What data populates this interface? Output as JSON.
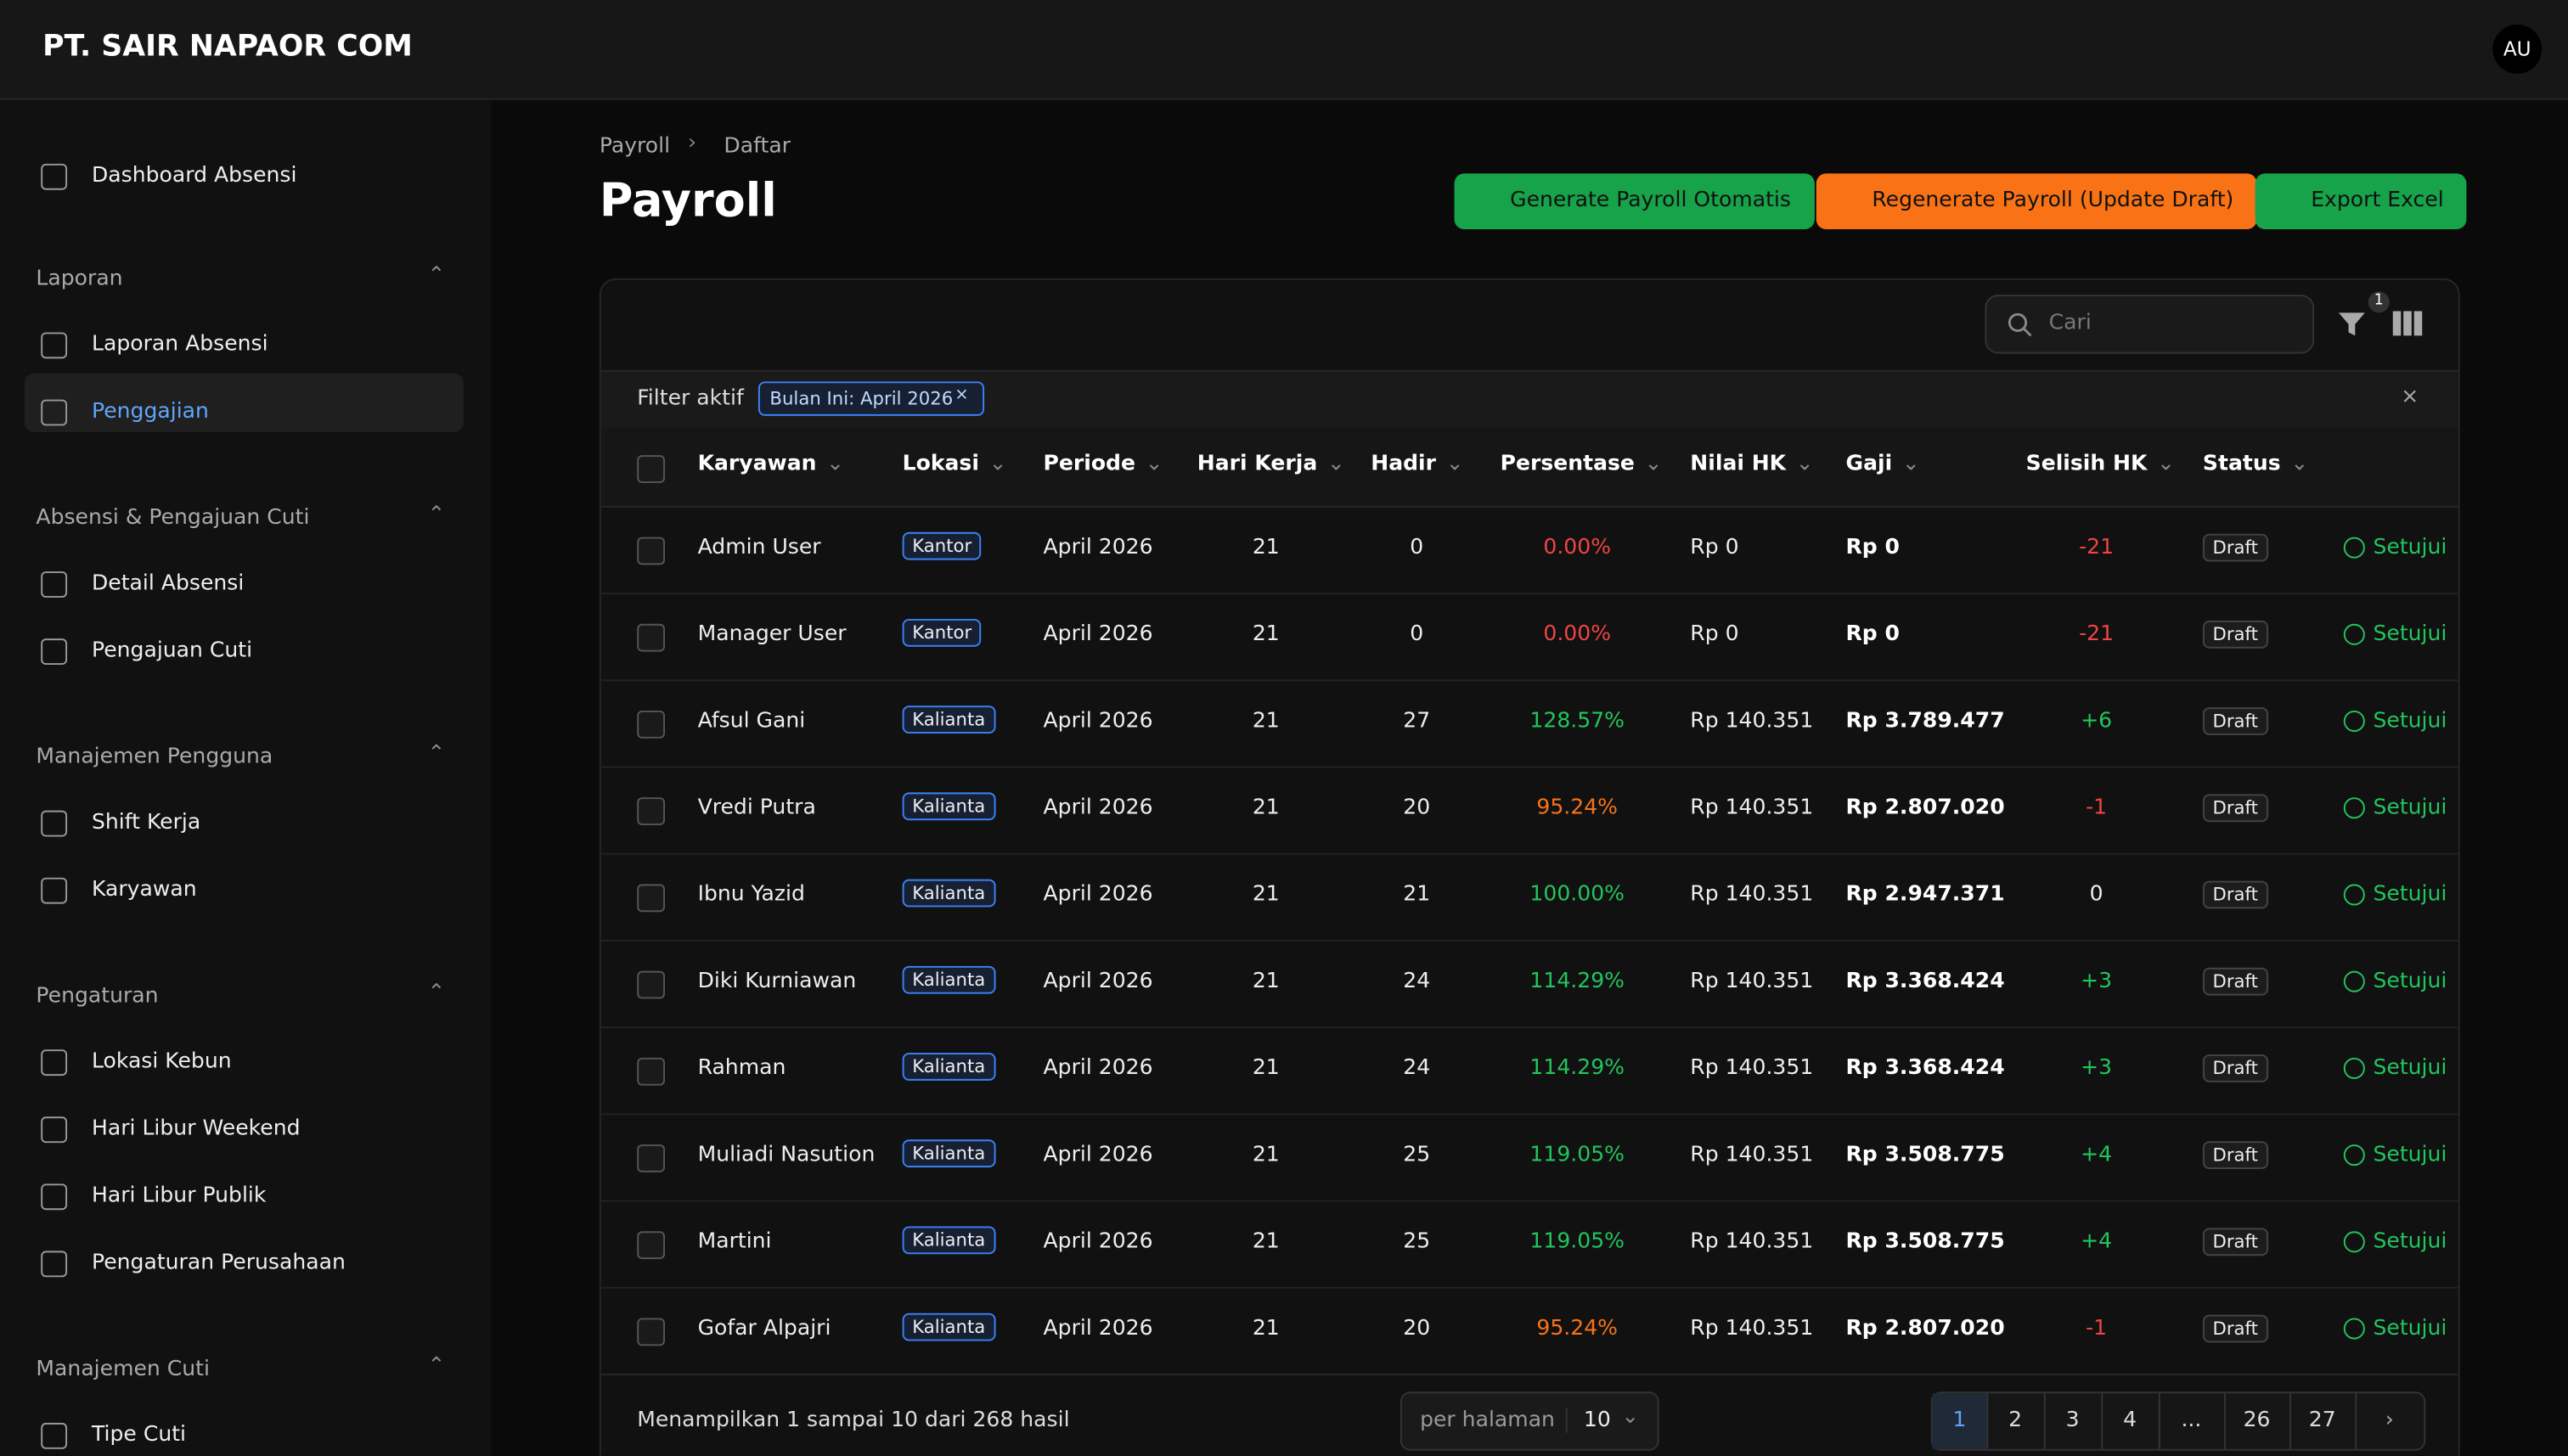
{
  "header": {
    "brand": "PT. SAIR NAPAOR COM",
    "avatar": "AU"
  },
  "sidebar": {
    "top": "Dashboard Absensi",
    "groups": [
      {
        "title": "Laporan",
        "items": [
          "Laporan Absensi",
          "Penggajian"
        ]
      },
      {
        "title": "Absensi & Pengajuan Cuti",
        "items": [
          "Detail Absensi",
          "Pengajuan Cuti"
        ]
      },
      {
        "title": "Manajemen Pengguna",
        "items": [
          "Shift Kerja",
          "Karyawan"
        ]
      },
      {
        "title": "Pengaturan",
        "items": [
          "Lokasi Kebun",
          "Hari Libur Weekend",
          "Hari Libur Publik",
          "Pengaturan Perusahaan"
        ]
      },
      {
        "title": "Manajemen Cuti",
        "items": [
          "Tipe Cuti"
        ]
      }
    ],
    "active": "Penggajian"
  },
  "breadcrumb": [
    "Payroll",
    "Daftar"
  ],
  "title": "Payroll",
  "actions": [
    "Generate Payroll Otomatis",
    "Regenerate Payroll (Update Draft)",
    "Export Excel"
  ],
  "toolbar": {
    "search": "Cari",
    "filter_count": "1"
  },
  "filters": {
    "label": "Filter aktif",
    "chips": [
      "Bulan Ini: April 2026"
    ]
  },
  "table": {
    "columns": [
      "Karyawan",
      "Lokasi",
      "Periode",
      "Hari Kerja",
      "Hadir",
      "Persentase",
      "Nilai HK",
      "Gaji",
      "Selisih HK",
      "Status"
    ],
    "rows": [
      [
        "Admin User",
        "Kantor",
        "April 2026",
        "21",
        "0",
        "0.00%",
        "Rp 0",
        "Rp 0",
        "-21",
        "Draft",
        "Setujui"
      ],
      [
        "Manager User",
        "Kantor",
        "April 2026",
        "21",
        "0",
        "0.00%",
        "Rp 0",
        "Rp 0",
        "-21",
        "Draft",
        "Setujui"
      ],
      [
        "Afsul Gani",
        "Kalianta",
        "April 2026",
        "21",
        "27",
        "128.57%",
        "Rp 140.351",
        "Rp 3.789.477",
        "+6",
        "Draft",
        "Setujui"
      ],
      [
        "Vredi Putra",
        "Kalianta",
        "April 2026",
        "21",
        "20",
        "95.24%",
        "Rp 140.351",
        "Rp 2.807.020",
        "-1",
        "Draft",
        "Setujui"
      ],
      [
        "Ibnu Yazid",
        "Kalianta",
        "April 2026",
        "21",
        "21",
        "100.00%",
        "Rp 140.351",
        "Rp 2.947.371",
        "0",
        "Draft",
        "Setujui"
      ],
      [
        "Diki Kurniawan",
        "Kalianta",
        "April 2026",
        "21",
        "24",
        "114.29%",
        "Rp 140.351",
        "Rp 3.368.424",
        "+3",
        "Draft",
        "Setujui"
      ],
      [
        "Rahman",
        "Kalianta",
        "April 2026",
        "21",
        "24",
        "114.29%",
        "Rp 140.351",
        "Rp 3.368.424",
        "+3",
        "Draft",
        "Setujui"
      ],
      [
        "Muliadi Nasution",
        "Kalianta",
        "April 2026",
        "21",
        "25",
        "119.05%",
        "Rp 140.351",
        "Rp 3.508.775",
        "+4",
        "Draft",
        "Setujui"
      ],
      [
        "Martini",
        "Kalianta",
        "April 2026",
        "21",
        "25",
        "119.05%",
        "Rp 140.351",
        "Rp 3.508.775",
        "+4",
        "Draft",
        "Setujui"
      ],
      [
        "Gofar Alpajri",
        "Kalianta",
        "April 2026",
        "21",
        "20",
        "95.24%",
        "Rp 140.351",
        "Rp 2.807.020",
        "-1",
        "Draft",
        "Setujui"
      ]
    ]
  },
  "footer": {
    "summary": "Menampilkan 1 sampai 10 dari 268 hasil",
    "per_page_label": "per halaman",
    "per_page": "10",
    "pages": [
      "1",
      "2",
      "3",
      "4",
      "...",
      "26",
      "27"
    ]
  }
}
